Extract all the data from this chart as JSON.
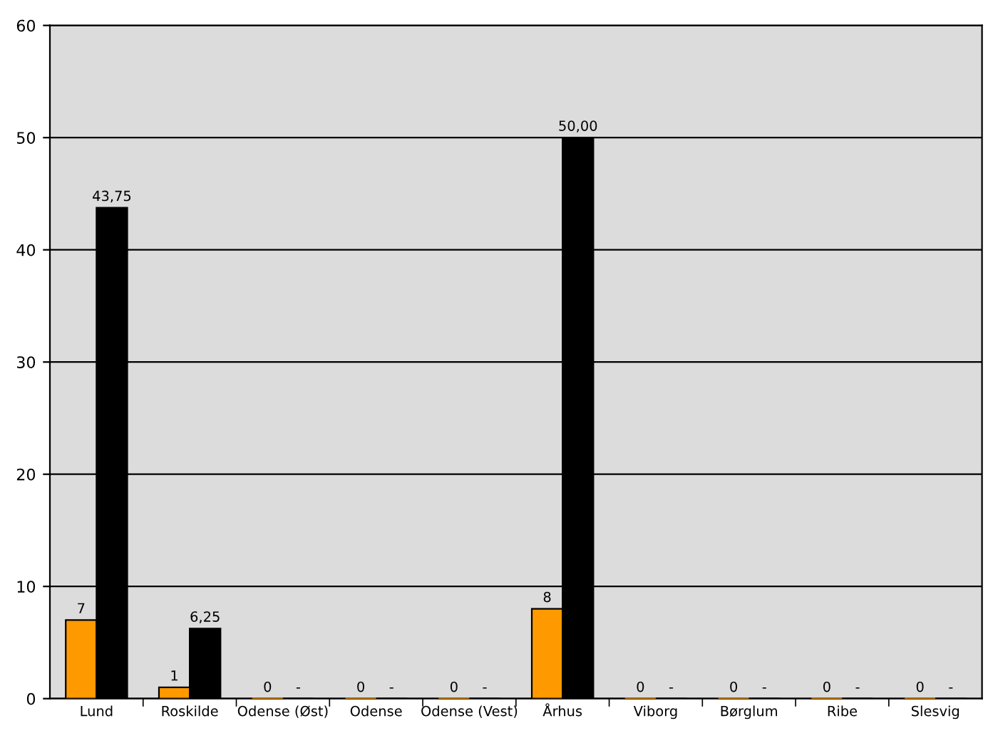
{
  "chart_data": {
    "type": "bar",
    "categories": [
      "Lund",
      "Roskilde",
      "Odense (Øst)",
      "Odense",
      "Odense (Vest)",
      "Århus",
      "Viborg",
      "Børglum",
      "Ribe",
      "Slesvig"
    ],
    "series": [
      {
        "color": "#ff9900",
        "values": [
          7,
          1,
          0,
          0,
          0,
          8,
          0,
          0,
          0,
          0
        ],
        "value_labels": [
          "7",
          "1",
          "0",
          "0",
          "0",
          "8",
          "0",
          "0",
          "0",
          "0"
        ]
      },
      {
        "color": "#000000",
        "values": [
          43.75,
          6.25,
          0,
          0,
          0,
          50,
          0,
          0,
          0,
          0
        ],
        "value_labels": [
          "43,75",
          "6,25",
          "-",
          "-",
          "-",
          "50,00",
          "-",
          "-",
          "-",
          "-"
        ]
      }
    ],
    "ylim": [
      0,
      60
    ],
    "yticks": [
      0,
      10,
      20,
      30,
      40,
      50,
      60
    ],
    "grid": "y"
  }
}
